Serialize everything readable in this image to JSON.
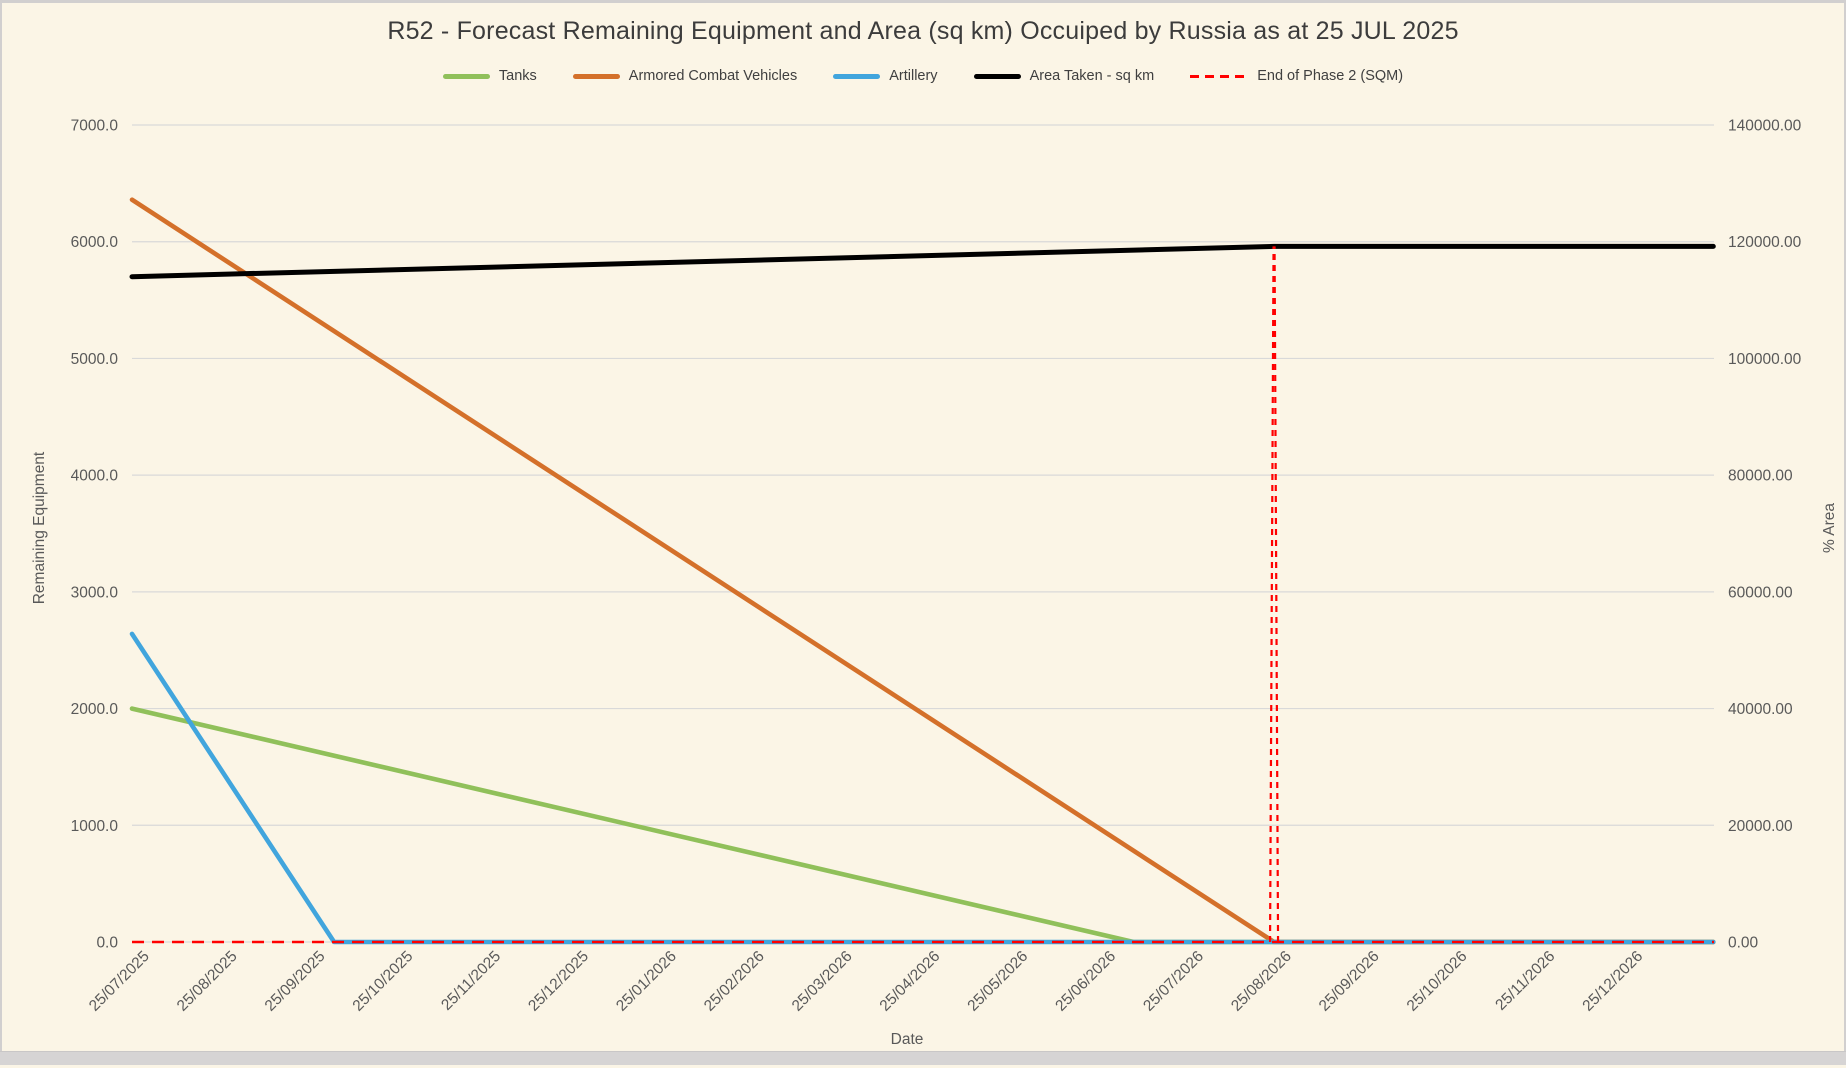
{
  "colors": {
    "background": "#FBF5E6",
    "gridline": "#D9D9D9",
    "tick_text": "#595959",
    "title_text": "#3C3C3C",
    "phase_red": "#FF0000"
  },
  "chart_data": {
    "type": "line",
    "title": "R52 - Forecast Remaining Equipment and Area (sq km) Occuiped by Russia as at 25 JUL 2025",
    "grid": "horizontal",
    "legend_position": "top",
    "x_axis": {
      "label": "Date",
      "tick_labels": [
        "25/07/2025",
        "25/08/2025",
        "25/09/2025",
        "25/10/2025",
        "25/11/2025",
        "25/12/2025",
        "25/01/2026",
        "25/02/2026",
        "25/03/2026",
        "25/04/2026",
        "25/05/2026",
        "25/06/2026",
        "25/07/2026",
        "25/08/2026",
        "25/09/2026",
        "25/10/2026",
        "25/11/2026",
        "25/12/2026"
      ]
    },
    "y_axis_left": {
      "label": "Remaining Equipment",
      "min": 0,
      "max": 7000,
      "tick_step": 1000,
      "tick_decimals": 1
    },
    "y_axis_right": {
      "label": "% Area",
      "min": 0,
      "max": 140000,
      "tick_step": 20000,
      "tick_decimals": 2
    },
    "series": [
      {
        "name": "Tanks",
        "color": "#90C05A",
        "axis": "left",
        "points": [
          {
            "x_month": 0,
            "y": 2000
          },
          {
            "x_month": 11.4,
            "y": 0
          },
          {
            "x_month": 18,
            "y": 0
          }
        ],
        "monthly_values": [
          2000,
          1825,
          1649,
          1474,
          1298,
          1123,
          947,
          772,
          597,
          421,
          246,
          70,
          0,
          0,
          0,
          0,
          0,
          0
        ]
      },
      {
        "name": "Armored Combat Vehicles",
        "color": "#D4702A",
        "axis": "left",
        "points": [
          {
            "x_month": 0,
            "y": 6360
          },
          {
            "x_month": 13,
            "y": 0
          },
          {
            "x_month": 18,
            "y": 0
          }
        ],
        "monthly_values": [
          6360,
          5871,
          5382,
          4892,
          4403,
          3914,
          3425,
          2935,
          2446,
          1957,
          1468,
          978,
          489,
          0,
          0,
          0,
          0,
          0
        ]
      },
      {
        "name": "Artillery",
        "color": "#41A5DD",
        "axis": "left",
        "points": [
          {
            "x_month": 0,
            "y": 2640
          },
          {
            "x_month": 2.3,
            "y": 0
          },
          {
            "x_month": 18,
            "y": 0
          }
        ],
        "monthly_values": [
          2640,
          1492,
          344,
          0,
          0,
          0,
          0,
          0,
          0,
          0,
          0,
          0,
          0,
          0,
          0,
          0,
          0,
          0
        ]
      },
      {
        "name": "Area Taken - sq km",
        "color": "#000000",
        "axis": "right",
        "points": [
          {
            "x_month": 0,
            "y": 114000
          },
          {
            "x_month": 13,
            "y": 119200
          },
          {
            "x_month": 18,
            "y": 119200
          }
        ],
        "monthly_values": [
          114000,
          114400,
          114800,
          115200,
          115600,
          116000,
          116400,
          116800,
          117200,
          117600,
          118000,
          118400,
          118800,
          119200,
          119200,
          119200,
          119200,
          119200
        ]
      }
    ],
    "phase_line": {
      "name": "End of Phase 2 (SQM)",
      "color": "#FF0000",
      "style": "dashed",
      "baseline_value": 0,
      "vertical_at": "25/08/2026",
      "vertical_at_month": 13,
      "vertical_top_value_right_axis": 119200
    }
  }
}
